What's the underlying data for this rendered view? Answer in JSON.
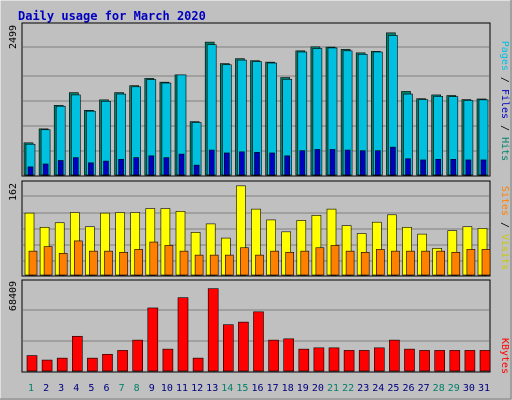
{
  "title": "Daily usage for March 2020",
  "colors": {
    "background": "#c0c0c0",
    "hits": "#00806b",
    "files": "#00c0e0",
    "pages": "#0000c0",
    "visits": "#ffff00",
    "sites": "#ff8000",
    "kbytes": "#ff0000",
    "weekend_label": "#00806b",
    "weekday_label": "#000080"
  },
  "chart_data": [
    {
      "type": "bar",
      "panel": "top",
      "max_label": "2499",
      "ylim": [
        0,
        2499
      ],
      "legend": [
        "Pages",
        "Files",
        "Hits"
      ],
      "categories": [
        "1",
        "2",
        "3",
        "4",
        "5",
        "6",
        "7",
        "8",
        "9",
        "10",
        "11",
        "12",
        "13",
        "14",
        "15",
        "16",
        "17",
        "18",
        "19",
        "20",
        "21",
        "22",
        "23",
        "24",
        "25",
        "26",
        "27",
        "28",
        "29",
        "30",
        "31"
      ],
      "weekend_days": [
        "1",
        "7",
        "8",
        "14",
        "15",
        "21",
        "22",
        "28",
        "29"
      ],
      "series": [
        {
          "name": "Hits",
          "values": [
            555,
            795,
            1200,
            1420,
            1115,
            1295,
            1420,
            1540,
            1665,
            1600,
            1725,
            920,
            2290,
            1920,
            2005,
            1970,
            1945,
            1680,
            2140,
            2210,
            2205,
            2165,
            2105,
            2130,
            2450,
            1440,
            1315,
            1380,
            1370,
            1300,
            1310
          ]
        },
        {
          "name": "Files",
          "values": [
            530,
            780,
            1185,
            1380,
            1100,
            1270,
            1395,
            1520,
            1645,
            1585,
            1725,
            905,
            2245,
            1900,
            1980,
            1955,
            1930,
            1650,
            2120,
            2180,
            2190,
            2140,
            2080,
            2120,
            2405,
            1395,
            1300,
            1355,
            1350,
            1285,
            1295
          ]
        },
        {
          "name": "Pages",
          "values": [
            140,
            190,
            250,
            300,
            210,
            240,
            270,
            300,
            330,
            300,
            360,
            170,
            430,
            380,
            400,
            390,
            380,
            330,
            420,
            440,
            440,
            430,
            420,
            420,
            480,
            280,
            260,
            270,
            270,
            260,
            260
          ]
        }
      ]
    },
    {
      "type": "bar",
      "panel": "middle",
      "max_label": "162",
      "ylim": [
        0,
        162
      ],
      "legend": [
        "Sites",
        "Visits"
      ],
      "categories": [
        "1",
        "2",
        "3",
        "4",
        "5",
        "6",
        "7",
        "8",
        "9",
        "10",
        "11",
        "12",
        "13",
        "14",
        "15",
        "16",
        "17",
        "18",
        "19",
        "20",
        "21",
        "22",
        "23",
        "24",
        "25",
        "26",
        "27",
        "28",
        "29",
        "30",
        "31"
      ],
      "series": [
        {
          "name": "Visits",
          "values": [
            109,
            84,
            92,
            110,
            85,
            109,
            110,
            110,
            117,
            117,
            112,
            75,
            90,
            65,
            157,
            116,
            97,
            76,
            96,
            105,
            116,
            87,
            73,
            93,
            106,
            84,
            72,
            47,
            78,
            85,
            82
          ]
        },
        {
          "name": "Sites",
          "values": [
            42,
            50,
            38,
            60,
            42,
            42,
            40,
            45,
            58,
            52,
            42,
            35,
            35,
            35,
            48,
            35,
            42,
            40,
            42,
            48,
            52,
            42,
            40,
            45,
            42,
            42,
            42,
            42,
            40,
            45,
            45
          ]
        }
      ]
    },
    {
      "type": "bar",
      "panel": "bottom",
      "max_label": "68409",
      "ylim": [
        0,
        68409
      ],
      "legend": [
        "KBytes"
      ],
      "categories": [
        "1",
        "2",
        "3",
        "4",
        "5",
        "6",
        "7",
        "8",
        "9",
        "10",
        "11",
        "12",
        "13",
        "14",
        "15",
        "16",
        "17",
        "18",
        "19",
        "20",
        "21",
        "22",
        "23",
        "24",
        "25",
        "26",
        "27",
        "28",
        "29",
        "30",
        "31"
      ],
      "series": [
        {
          "name": "KBytes",
          "values": [
            12000,
            8500,
            10000,
            27000,
            10000,
            13000,
            16000,
            24000,
            49000,
            17000,
            57000,
            10000,
            64000,
            36000,
            38000,
            46000,
            24000,
            25000,
            17000,
            18000,
            18000,
            16000,
            16000,
            18000,
            24000,
            17000,
            16000,
            16000,
            16000,
            16000,
            16000
          ]
        }
      ]
    }
  ]
}
